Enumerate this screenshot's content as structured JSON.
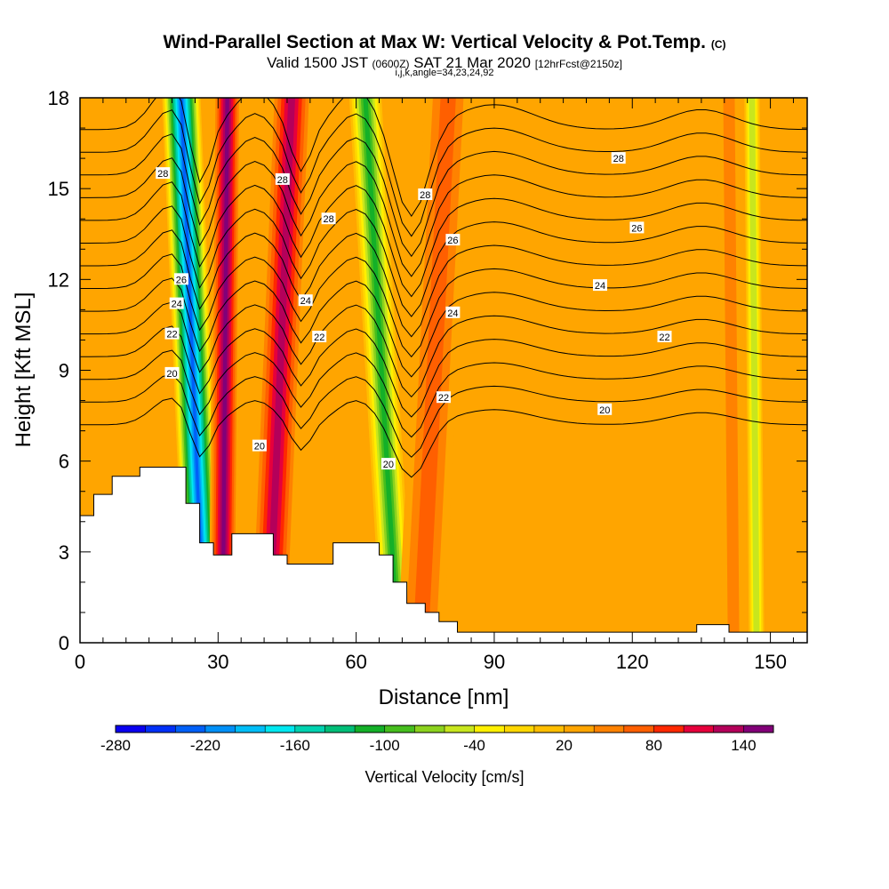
{
  "header": {
    "title": "Wind-Parallel Section at Max W: Vertical Velocity & Pot.Temp.",
    "title_mark": "(C)",
    "valid_prefix": "Valid 1500 JST",
    "valid_utc": "(0600Z)",
    "valid_date": "SAT 21 Mar 2020",
    "forecast": "[12hrFcst@2150z]",
    "indices": "i,j,k,angle=34,23,24,92"
  },
  "chart_data": {
    "type": "heatmap",
    "xlabel": "Distance [nm]",
    "ylabel": "Height [Kft MSL]",
    "xlim": [
      0,
      158
    ],
    "ylim": [
      0,
      18
    ],
    "x_ticks": [
      0,
      30,
      60,
      90,
      120,
      150
    ],
    "y_ticks": [
      0,
      3,
      6,
      9,
      12,
      15,
      18
    ],
    "colorbar": {
      "title": "Vertical Velocity [cm/s]",
      "min": -280,
      "max": 160,
      "step": 20,
      "labels": [
        -280,
        -220,
        -160,
        -100,
        -40,
        20,
        80,
        140
      ],
      "colors": [
        "#0a00f0",
        "#0030f8",
        "#0060f8",
        "#0090f8",
        "#00bef8",
        "#00e8f0",
        "#00d2b0",
        "#00be78",
        "#14b028",
        "#46be1e",
        "#8cd21e",
        "#c8e61e",
        "#fff000",
        "#ffd700",
        "#ffbe00",
        "#ffa500",
        "#ff8200",
        "#ff5f00",
        "#ff2800",
        "#e6003c",
        "#b4005a",
        "#820078"
      ]
    },
    "velocity_bands": [
      {
        "x_top": 22,
        "x_bottom": 27,
        "width": 9,
        "value": -230
      },
      {
        "x_top": 32,
        "x_bottom": 31,
        "width": 6,
        "value": 150
      },
      {
        "x_top": 46,
        "x_bottom": 41,
        "width": 9,
        "value": 120
      },
      {
        "x_top": 62,
        "x_bottom": 69,
        "width": 8,
        "value": -110
      },
      {
        "x_top": 80,
        "x_bottom": 74,
        "width": 10,
        "value": 70
      },
      {
        "x_top": 141,
        "x_bottom": 142,
        "width": 5,
        "value": 40
      },
      {
        "x_top": 146,
        "x_bottom": 147,
        "width": 4,
        "value": -60
      }
    ],
    "potential_temperature_labels": [
      {
        "x": 18,
        "y": 15.5,
        "text": "28"
      },
      {
        "x": 44,
        "y": 15.3,
        "text": "28"
      },
      {
        "x": 54,
        "y": 14.0,
        "text": "28"
      },
      {
        "x": 75,
        "y": 14.8,
        "text": "28"
      },
      {
        "x": 117,
        "y": 16.0,
        "text": "28"
      },
      {
        "x": 22,
        "y": 12.0,
        "text": "26"
      },
      {
        "x": 81,
        "y": 13.3,
        "text": "26"
      },
      {
        "x": 121,
        "y": 13.7,
        "text": "26"
      },
      {
        "x": 21,
        "y": 11.2,
        "text": "24"
      },
      {
        "x": 49,
        "y": 11.3,
        "text": "24"
      },
      {
        "x": 81,
        "y": 10.9,
        "text": "24"
      },
      {
        "x": 113,
        "y": 11.8,
        "text": "24"
      },
      {
        "x": 20,
        "y": 10.2,
        "text": "22"
      },
      {
        "x": 52,
        "y": 10.1,
        "text": "22"
      },
      {
        "x": 79,
        "y": 8.1,
        "text": "22"
      },
      {
        "x": 127,
        "y": 10.1,
        "text": "22"
      },
      {
        "x": 20,
        "y": 8.9,
        "text": "20"
      },
      {
        "x": 39,
        "y": 6.5,
        "text": "20"
      },
      {
        "x": 67,
        "y": 5.9,
        "text": "20"
      },
      {
        "x": 114,
        "y": 7.7,
        "text": "20"
      }
    ],
    "terrain": [
      [
        0,
        4.2
      ],
      [
        3,
        4.2
      ],
      [
        3,
        4.9
      ],
      [
        7,
        4.9
      ],
      [
        7,
        5.5
      ],
      [
        13,
        5.5
      ],
      [
        13,
        5.8
      ],
      [
        23,
        5.8
      ],
      [
        23,
        4.6
      ],
      [
        26,
        4.6
      ],
      [
        26,
        3.3
      ],
      [
        29,
        3.3
      ],
      [
        29,
        2.9
      ],
      [
        33,
        2.9
      ],
      [
        33,
        3.6
      ],
      [
        42,
        3.6
      ],
      [
        42,
        2.9
      ],
      [
        45,
        2.9
      ],
      [
        45,
        2.6
      ],
      [
        55,
        2.6
      ],
      [
        55,
        3.3
      ],
      [
        65,
        3.3
      ],
      [
        65,
        2.9
      ],
      [
        68,
        2.9
      ],
      [
        68,
        2.0
      ],
      [
        71,
        2.0
      ],
      [
        71,
        1.3
      ],
      [
        75,
        1.3
      ],
      [
        75,
        1.0
      ],
      [
        78,
        1.0
      ],
      [
        78,
        0.7
      ],
      [
        82,
        0.7
      ],
      [
        82,
        0.35
      ],
      [
        134,
        0.35
      ],
      [
        134,
        0.6
      ],
      [
        141,
        0.6
      ],
      [
        141,
        0.35
      ],
      [
        158,
        0.35
      ]
    ]
  }
}
